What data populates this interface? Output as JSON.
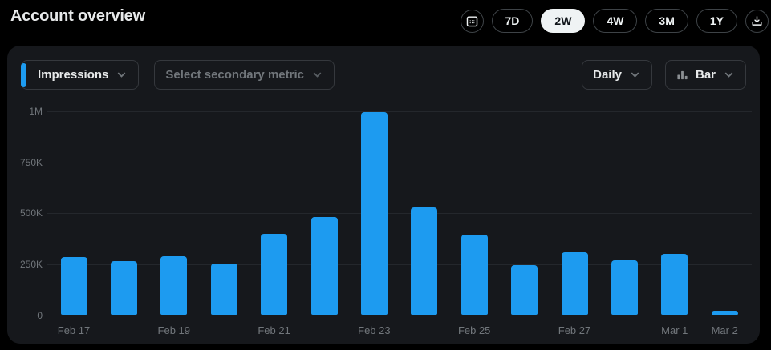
{
  "page": {
    "title": "Account overview"
  },
  "toolbar": {
    "date_picker_icon": "calendar-icon",
    "download_icon": "download-icon",
    "ranges": [
      {
        "label": "7D",
        "selected": false
      },
      {
        "label": "2W",
        "selected": true
      },
      {
        "label": "4W",
        "selected": false
      },
      {
        "label": "3M",
        "selected": false
      },
      {
        "label": "1Y",
        "selected": false
      }
    ]
  },
  "chart_controls": {
    "primary_metric": "Impressions",
    "secondary_metric_placeholder": "Select secondary metric",
    "interval": "Daily",
    "chart_type": "Bar",
    "chart_type_icon": "bar-chart-icon"
  },
  "colors": {
    "accent_blue": "#1d9bf0",
    "card_background": "#16181c",
    "page_background": "#000000",
    "text_primary": "#e7e9ea",
    "text_muted": "#71767b",
    "selected_pill_background": "#eff3f4"
  },
  "chart_data": {
    "type": "bar",
    "series_name": "Impressions",
    "interval": "Daily",
    "categories": [
      "Feb 17",
      "Feb 18",
      "Feb 19",
      "Feb 20",
      "Feb 21",
      "Feb 22",
      "Feb 23",
      "Feb 24",
      "Feb 25",
      "Feb 26",
      "Feb 27",
      "Feb 28",
      "Mar 1",
      "Mar 2"
    ],
    "values": [
      285000,
      265000,
      290000,
      255000,
      400000,
      480000,
      995000,
      530000,
      395000,
      245000,
      310000,
      270000,
      300000,
      20000
    ],
    "ylim": [
      0,
      1000000
    ],
    "y_ticks": [
      {
        "label": "0",
        "value": 0
      },
      {
        "label": "250K",
        "value": 250000
      },
      {
        "label": "500K",
        "value": 500000
      },
      {
        "label": "750K",
        "value": 750000
      },
      {
        "label": "1M",
        "value": 1000000
      }
    ],
    "x_tick_indices": [
      0,
      2,
      4,
      6,
      8,
      10,
      12,
      13
    ],
    "x_tick_labels": [
      "Feb 17",
      "Feb 19",
      "Feb 21",
      "Feb 23",
      "Feb 25",
      "Feb 27",
      "Mar 1",
      "Mar 2"
    ],
    "bar_color": "#1d9bf0",
    "grid": true,
    "legend": "none"
  }
}
